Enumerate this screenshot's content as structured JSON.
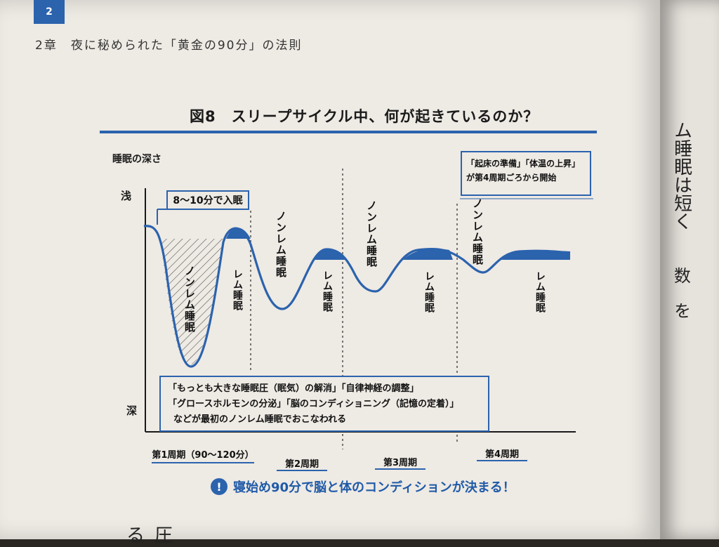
{
  "header": {
    "page_number": "2",
    "running_head": "2章　夜に秘められた「黄金の90分」の法則"
  },
  "figure": {
    "title": "図8　スリープサイクル中、何が起きているのか？",
    "y_axis_label": "睡眠の深さ",
    "shallow_label": "浅",
    "deep_label": "深",
    "onset_box": "8〜10分で入眠",
    "wake_box_line1": "「起床の準備」「体温の上昇」",
    "wake_box_line2": "が第4周期ごろから開始",
    "info_box": {
      "line1": "「もっとも大きな睡眠圧（眠気）の解消」「自律神経の調整」",
      "line2": "「グロースホルモンの分泌」「脳のコンディショニング（記憶の定着）」",
      "line3": "などが最初のノンレム睡眠でおこなわれる"
    },
    "stage_labels": {
      "nrem": "ノンレム睡眠",
      "rem": "レム睡眠"
    },
    "cycles": [
      {
        "label": "第1周期（90〜120分）"
      },
      {
        "label": "第2周期"
      },
      {
        "label": "第3周期"
      },
      {
        "label": "第4周期"
      }
    ],
    "bottom_note": "寝始め90分で脳と体のコンディションが決まる！",
    "line_color": "#2b63ad"
  },
  "right_page": {
    "text_column1": "ム睡眠は短く",
    "text_column2": "数",
    "text_column3": "を"
  },
  "bottom_text": "る圧"
}
